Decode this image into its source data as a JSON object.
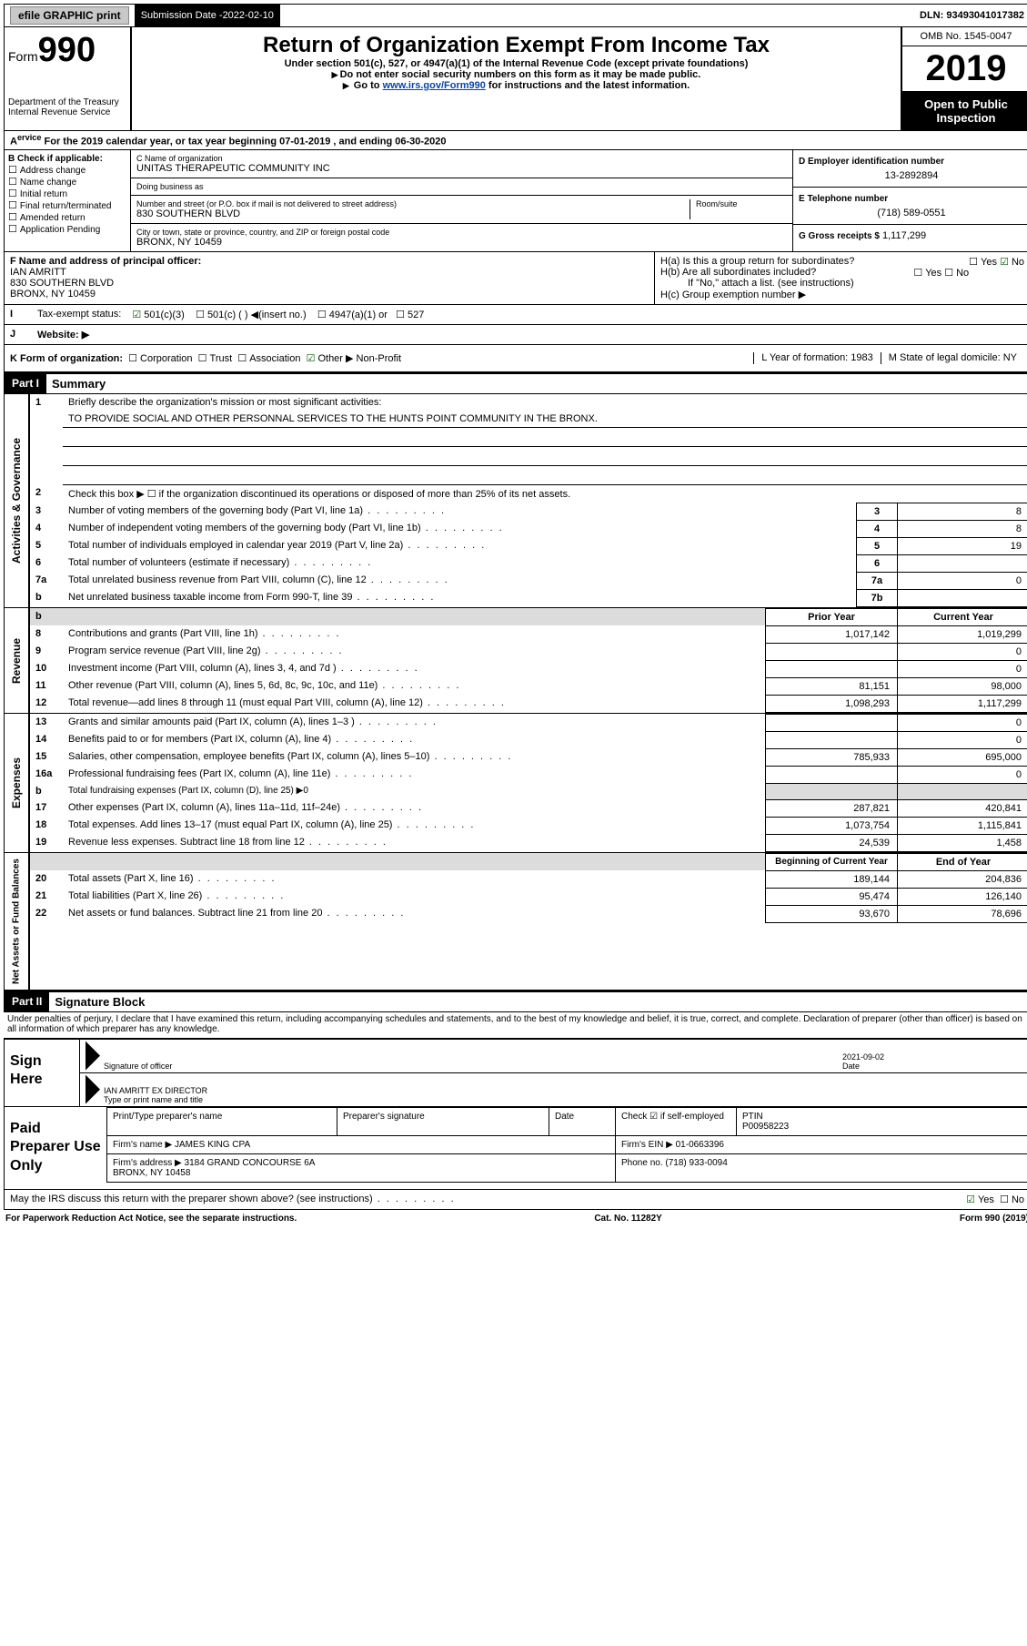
{
  "topbar": {
    "efile": "efile GRAPHIC print",
    "subdate_lbl": "Submission Date - ",
    "subdate": "2022-02-10",
    "dln": "DLN: 93493041017382"
  },
  "header": {
    "form_word": "Form",
    "form_num": "990",
    "dept": "Department of the Treasury\nInternal Revenue Service",
    "title": "Return of Organization Exempt From Income Tax",
    "subtitle": "Under section 501(c), 527, or 4947(a)(1) of the Internal Revenue Code (except private foundations)",
    "note1": "Do not enter social security numbers on this form as it may be made public.",
    "note2_a": "Go to ",
    "note2_link": "www.irs.gov/Form990",
    "note2_b": " for instructions and the latest information.",
    "omb": "OMB No. 1545-0047",
    "year": "2019",
    "inspection": "Open to Public Inspection"
  },
  "rowA": "For the 2019 calendar year, or tax year beginning 07-01-2019   , and ending 06-30-2020",
  "sectionB": {
    "lbl": "B Check if applicable:",
    "items": [
      "Address change",
      "Name change",
      "Initial return",
      "Final return/terminated",
      "Amended return",
      "Application Pending"
    ]
  },
  "sectionC": {
    "name_lbl": "C Name of organization",
    "name": "UNITAS THERAPEUTIC COMMUNITY INC",
    "dba_lbl": "Doing business as",
    "addr_lbl": "Number and street (or P.O. box if mail is not delivered to street address)",
    "room_lbl": "Room/suite",
    "addr": "830 SOUTHERN BLVD",
    "city_lbl": "City or town, state or province, country, and ZIP or foreign postal code",
    "city": "BRONX, NY  10459"
  },
  "sectionD": {
    "ein_lbl": "D Employer identification number",
    "ein": "13-2892894",
    "tel_lbl": "E Telephone number",
    "tel": "(718) 589-0551",
    "gross_lbl": "G Gross receipts $",
    "gross": "1,117,299"
  },
  "sectionF": {
    "lbl": "F  Name and address of principal officer:",
    "name": "IAN AMRITT",
    "addr1": "830 SOUTHERN BLVD",
    "addr2": "BRONX, NY  10459",
    "ha": "H(a)  Is this a group return for subordinates?",
    "hb": "H(b)  Are all subordinates included?",
    "hb_note": "If \"No,\" attach a list. (see instructions)",
    "hc": "H(c)  Group exemption number ▶",
    "yes": "Yes",
    "no": "No"
  },
  "rowI": {
    "lbl": "Tax-exempt status:",
    "a": "501(c)(3)",
    "b": "501(c) (  ) ◀(insert no.)",
    "c": "4947(a)(1) or",
    "d": "527"
  },
  "rowJ": {
    "lbl": "Website: ▶"
  },
  "rowK": {
    "k": "K Form of organization:",
    "corp": "Corporation",
    "trust": "Trust",
    "assoc": "Association",
    "other": "Other ▶",
    "other_val": "Non-Profit",
    "l": "L Year of formation: 1983",
    "m": "M State of legal domicile: NY"
  },
  "partI": {
    "hdr": "Part I",
    "title": "Summary",
    "line1_lbl": "Briefly describe the organization's mission or most significant activities:",
    "line1_val": "TO PROVIDE SOCIAL AND OTHER PERSONNAL SERVICES TO THE HUNTS POINT COMMUNITY IN THE BRONX.",
    "line2": "Check this box ▶ ☐  if the organization discontinued its operations or disposed of more than 25% of its net assets.",
    "gov_rows": [
      {
        "n": "3",
        "d": "Number of voting members of the governing body (Part VI, line 1a)",
        "box": "3",
        "v": "8"
      },
      {
        "n": "4",
        "d": "Number of independent voting members of the governing body (Part VI, line 1b)",
        "box": "4",
        "v": "8"
      },
      {
        "n": "5",
        "d": "Total number of individuals employed in calendar year 2019 (Part V, line 2a)",
        "box": "5",
        "v": "19"
      },
      {
        "n": "6",
        "d": "Total number of volunteers (estimate if necessary)",
        "box": "6",
        "v": ""
      },
      {
        "n": "7a",
        "d": "Total unrelated business revenue from Part VIII, column (C), line 12",
        "box": "7a",
        "v": "0"
      },
      {
        "n": "b",
        "d": "Net unrelated business taxable income from Form 990-T, line 39",
        "box": "7b",
        "v": ""
      }
    ],
    "prior_hdr": "Prior Year",
    "curr_hdr": "Current Year",
    "rev_rows": [
      {
        "n": "8",
        "d": "Contributions and grants (Part VIII, line 1h)",
        "p": "1,017,142",
        "c": "1,019,299"
      },
      {
        "n": "9",
        "d": "Program service revenue (Part VIII, line 2g)",
        "p": "",
        "c": "0"
      },
      {
        "n": "10",
        "d": "Investment income (Part VIII, column (A), lines 3, 4, and 7d )",
        "p": "",
        "c": "0"
      },
      {
        "n": "11",
        "d": "Other revenue (Part VIII, column (A), lines 5, 6d, 8c, 9c, 10c, and 11e)",
        "p": "81,151",
        "c": "98,000"
      },
      {
        "n": "12",
        "d": "Total revenue—add lines 8 through 11 (must equal Part VIII, column (A), line 12)",
        "p": "1,098,293",
        "c": "1,117,299"
      }
    ],
    "exp_rows": [
      {
        "n": "13",
        "d": "Grants and similar amounts paid (Part IX, column (A), lines 1–3 )",
        "p": "",
        "c": "0"
      },
      {
        "n": "14",
        "d": "Benefits paid to or for members (Part IX, column (A), line 4)",
        "p": "",
        "c": "0"
      },
      {
        "n": "15",
        "d": "Salaries, other compensation, employee benefits (Part IX, column (A), lines 5–10)",
        "p": "785,933",
        "c": "695,000"
      },
      {
        "n": "16a",
        "d": "Professional fundraising fees (Part IX, column (A), line 11e)",
        "p": "",
        "c": "0"
      },
      {
        "n": "b",
        "d": "Total fundraising expenses (Part IX, column (D), line 25) ▶0",
        "p": null,
        "c": null
      },
      {
        "n": "17",
        "d": "Other expenses (Part IX, column (A), lines 11a–11d, 11f–24e)",
        "p": "287,821",
        "c": "420,841"
      },
      {
        "n": "18",
        "d": "Total expenses. Add lines 13–17 (must equal Part IX, column (A), line 25)",
        "p": "1,073,754",
        "c": "1,115,841"
      },
      {
        "n": "19",
        "d": "Revenue less expenses. Subtract line 18 from line 12",
        "p": "24,539",
        "c": "1,458"
      }
    ],
    "na_hdr1": "Beginning of Current Year",
    "na_hdr2": "End of Year",
    "na_rows": [
      {
        "n": "20",
        "d": "Total assets (Part X, line 16)",
        "p": "189,144",
        "c": "204,836"
      },
      {
        "n": "21",
        "d": "Total liabilities (Part X, line 26)",
        "p": "95,474",
        "c": "126,140"
      },
      {
        "n": "22",
        "d": "Net assets or fund balances. Subtract line 21 from line 20",
        "p": "93,670",
        "c": "78,696"
      }
    ]
  },
  "vert": {
    "gov": "Activities & Governance",
    "rev": "Revenue",
    "exp": "Expenses",
    "na": "Net Assets or Fund Balances"
  },
  "partII": {
    "hdr": "Part II",
    "title": "Signature Block",
    "text": "Under penalties of perjury, I declare that I have examined this return, including accompanying schedules and statements, and to the best of my knowledge and belief, it is true, correct, and complete. Declaration of preparer (other than officer) is based on all information of which preparer has any knowledge.",
    "sign_here": "Sign Here",
    "sig_officer": "Signature of officer",
    "date_lbl": "Date",
    "date": "2021-09-02",
    "typed": "IAN AMRITT EX DIRECTOR",
    "typed_lbl": "Type or print name and title"
  },
  "prep": {
    "hdr": "Paid Preparer Use Only",
    "col1": "Print/Type preparer's name",
    "col2": "Preparer's signature",
    "col3": "Date",
    "col4a": "Check ☑ if self-employed",
    "col5_lbl": "PTIN",
    "col5": "P00958223",
    "firm_lbl": "Firm's name    ▶",
    "firm": "JAMES KING CPA",
    "ein_lbl": "Firm's EIN ▶",
    "ein": "01-0663396",
    "addr_lbl": "Firm's address ▶",
    "addr": "3184 GRAND CONCOURSE 6A\nBRONX, NY  10458",
    "phone_lbl": "Phone no.",
    "phone": "(718) 933-0094",
    "discuss": "May the IRS discuss this return with the preparer shown above? (see instructions)",
    "yes": "Yes",
    "no": "No"
  },
  "footer": {
    "left": "For Paperwork Reduction Act Notice, see the separate instructions.",
    "mid": "Cat. No. 11282Y",
    "right": "Form 990 (2019)"
  },
  "colors": {
    "black": "#000000",
    "white": "#ffffff",
    "link": "#0645ad",
    "gray_btn": "#c8c8c8",
    "gray_band": "#dcdcdc",
    "check_green": "#006000"
  }
}
